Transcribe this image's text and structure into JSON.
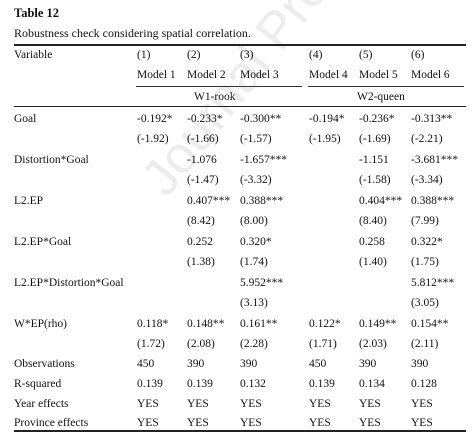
{
  "table_label": "Table 12",
  "caption": "Robustness check considering spatial correlation.",
  "watermark": "Journal Pre-proof",
  "header": {
    "variable_label": "Variable",
    "col_numbers": [
      "(1)",
      "(2)",
      "(3)",
      "(4)",
      "(5)",
      "(6)"
    ],
    "models": [
      "Model 1",
      "Model 2",
      "Model 3",
      "Model 4",
      "Model 5",
      "Model 6"
    ],
    "groups": [
      "W1-rook",
      "W2-queen"
    ]
  },
  "rows": [
    {
      "label": "Goal",
      "cells": [
        "-0.192*",
        "-0.233*",
        "-0.300**",
        "-0.194*",
        "-0.236*",
        "-0.313**"
      ]
    },
    {
      "label": "",
      "cells": [
        "(-1.92)",
        "(-1.66)",
        "(-1.57)",
        "(-1.95)",
        "(-1.69)",
        "(-2.21)"
      ]
    },
    {
      "label": "Distortion*Goal",
      "cells": [
        "",
        "-1.076",
        "-1.657***",
        "",
        "-1.151",
        "-3.681***"
      ]
    },
    {
      "label": "",
      "cells": [
        "",
        "(-1.47)",
        "(-3.32)",
        "",
        "(-1.58)",
        "(-3.34)"
      ]
    },
    {
      "label": "L2.EP",
      "cells": [
        "",
        "0.407***",
        "0.388***",
        "",
        "0.404***",
        "0.388***"
      ]
    },
    {
      "label": "",
      "cells": [
        "",
        "(8.42)",
        "(8.00)",
        "",
        "(8.40)",
        "(7.99)"
      ]
    },
    {
      "label": "L2.EP*Goal",
      "cells": [
        "",
        "0.252",
        "0.320*",
        "",
        "0.258",
        "0.322*"
      ]
    },
    {
      "label": "",
      "cells": [
        "",
        "(1.38)",
        "(1.74)",
        "",
        "(1.40)",
        "(1.75)"
      ]
    },
    {
      "label": "L2.EP*Distortion*Goal",
      "cells": [
        "",
        "",
        "5.952***",
        "",
        "",
        "5.812***"
      ]
    },
    {
      "label": "",
      "cells": [
        "",
        "",
        "(3.13)",
        "",
        "",
        "(3.05)"
      ]
    },
    {
      "label": "W*EP(rho)",
      "cells": [
        "0.118*",
        "0.148**",
        "0.161**",
        "0.122*",
        "0.149**",
        "0.154**"
      ]
    },
    {
      "label": "",
      "cells": [
        "(1.72)",
        "(2.08)",
        "(2.28)",
        "(1.71)",
        "(2.03)",
        "(2.11)"
      ]
    },
    {
      "label": "Observations",
      "cells": [
        "450",
        "390",
        "390",
        "450",
        "390",
        "390"
      ]
    },
    {
      "label": "R-squared",
      "cells": [
        "0.139",
        "0.139",
        "0.132",
        "0.139",
        "0.134",
        "0.128"
      ]
    },
    {
      "label": "Year effects",
      "cells": [
        "YES",
        "YES",
        "YES",
        "YES",
        "YES",
        "YES"
      ]
    },
    {
      "label": "Province effects",
      "cells": [
        "YES",
        "YES",
        "YES",
        "YES",
        "YES",
        "YES"
      ]
    }
  ]
}
